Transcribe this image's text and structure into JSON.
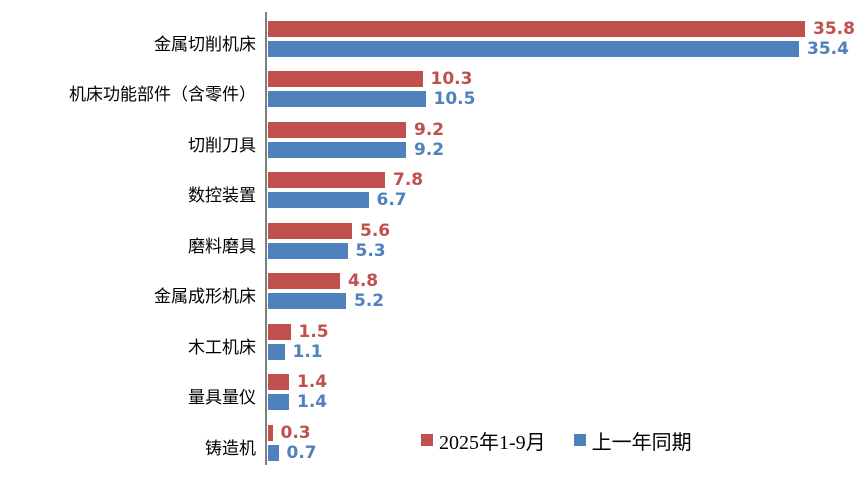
{
  "chart_data": {
    "type": "bar",
    "orientation": "horizontal",
    "title": "",
    "categories": [
      "金属切削机床",
      "机床功能部件（含零件）",
      "切削刀具",
      "数控装置",
      "磨料磨具",
      "金属成形机床",
      "木工机床",
      "量具量仪",
      "铸造机"
    ],
    "series": [
      {
        "name": "2025年1-9月",
        "color": "#C0504D",
        "values": [
          35.8,
          10.3,
          9.2,
          7.8,
          5.6,
          4.8,
          1.5,
          1.4,
          0.3
        ]
      },
      {
        "name": "上一年同期",
        "color": "#4F81BD",
        "values": [
          35.4,
          10.5,
          9.2,
          6.7,
          5.3,
          5.2,
          1.1,
          1.4,
          0.7
        ]
      }
    ],
    "value_labels": true,
    "legend_position": "bottom-right",
    "axis_color": "#7F7F7F",
    "background": "#FFFFFF",
    "xlim": [
      0,
      38.8
    ],
    "grid": false
  }
}
